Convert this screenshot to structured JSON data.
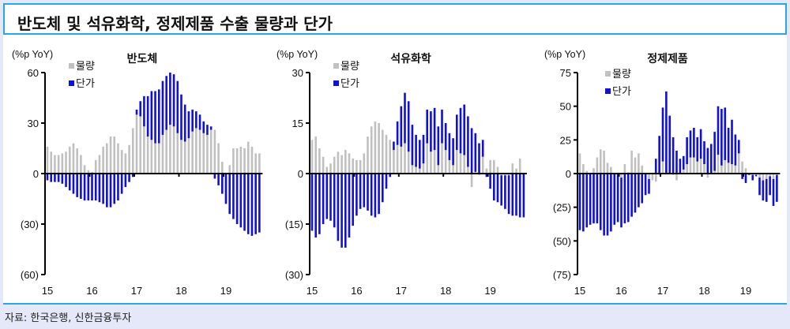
{
  "title": "반도체 및 석유화학, 정제제품 수출 물량과 단가",
  "source": "자료: 한국은행, 신한금융투자",
  "colors": {
    "volume": "#c0c0c0",
    "price": "#1010d8",
    "accent": "#29a9e0"
  },
  "chart_data": [
    {
      "type": "bar",
      "stacked": true,
      "title": "반도체",
      "unit_label": "(%p YoY)",
      "x_tick_labels": [
        "15",
        "16",
        "17",
        "18",
        "19"
      ],
      "y_ticks": [
        60,
        30,
        0,
        -30,
        -60
      ],
      "y_tick_labels": [
        "60",
        "30",
        "0",
        "(30)",
        "(60)"
      ],
      "ylim": [
        -60,
        60
      ],
      "x_start": "2015-01",
      "frequency": "monthly",
      "legend_placement": "top-left",
      "series": [
        {
          "name": "물량",
          "values": [
            16,
            13,
            11,
            11,
            12,
            13,
            16,
            18,
            15,
            11,
            5,
            2,
            1,
            8,
            11,
            16,
            18,
            22,
            22,
            18,
            14,
            12,
            17,
            27,
            35,
            34,
            28,
            22,
            20,
            18,
            18,
            23,
            26,
            29,
            28,
            24,
            20,
            19,
            21,
            25,
            27,
            26,
            24,
            23,
            26,
            26,
            18,
            7,
            0,
            5,
            15,
            15,
            16,
            15,
            19,
            16,
            12,
            12
          ]
        },
        {
          "name": "단가",
          "values": [
            -4,
            -5,
            -5,
            -5,
            -6,
            -8,
            -10,
            -12,
            -14,
            -15,
            -16,
            -16,
            -16,
            -16,
            -17,
            -18,
            -20,
            -20,
            -18,
            -16,
            -12,
            -8,
            -5,
            -2,
            3,
            9,
            18,
            24,
            29,
            31,
            32,
            32,
            32,
            31,
            31,
            31,
            27,
            22,
            16,
            13,
            10,
            9,
            7,
            6,
            2,
            -3,
            -7,
            -12,
            -18,
            -24,
            -27,
            -30,
            -32,
            -34,
            -36,
            -37,
            -36,
            -35
          ]
        }
      ]
    },
    {
      "type": "bar",
      "stacked": true,
      "title": "석유화학",
      "unit_label": "(%p YoY)",
      "x_tick_labels": [
        "15",
        "16",
        "17",
        "18",
        "19"
      ],
      "y_ticks": [
        30,
        15,
        0,
        -15,
        -30
      ],
      "y_tick_labels": [
        "30",
        "15",
        "0",
        "(15)",
        "(30)"
      ],
      "ylim": [
        -30,
        30
      ],
      "x_start": "2015-01",
      "frequency": "monthly",
      "legend_placement": "top-left",
      "series": [
        {
          "name": "물량",
          "values": [
            10,
            11,
            7.5,
            5,
            2,
            3,
            5,
            6.5,
            5.5,
            7,
            6,
            4.5,
            4,
            4,
            6,
            11,
            14,
            15.5,
            15,
            13,
            11.5,
            10,
            7,
            8.5,
            8,
            9,
            6.5,
            2.5,
            2,
            1.5,
            3,
            9,
            6.5,
            7,
            2.5,
            9,
            7,
            4,
            2.5,
            7,
            6,
            5.5,
            2,
            -4,
            0.5,
            -0.5,
            5,
            1.5,
            4,
            4,
            2,
            -0.5,
            -0.5,
            -0.5,
            3,
            1.5,
            4.5,
            0
          ]
        },
        {
          "name": "단가",
          "values": [
            -17,
            -19,
            -18,
            -15,
            -13.5,
            -14,
            -16,
            -20,
            -22,
            -22,
            -19,
            -15.5,
            -12.5,
            -10.5,
            -10,
            -11,
            -12.5,
            -13,
            -12,
            -8.5,
            -4.5,
            -1,
            2.5,
            7,
            12,
            15,
            15,
            12,
            9.5,
            8.5,
            8.5,
            10,
            12,
            12.5,
            11.5,
            10,
            8,
            8,
            8,
            10.5,
            13.5,
            15,
            15,
            13.5,
            11.5,
            9,
            5,
            -1,
            -4.5,
            -8,
            -8.5,
            -9,
            -10,
            -11.5,
            -12.5,
            -12.5,
            -13,
            -13
          ]
        }
      ]
    },
    {
      "type": "bar",
      "stacked": true,
      "title": "정제제품",
      "unit_label": "(%p YoY)",
      "x_tick_labels": [
        "15",
        "16",
        "17",
        "18",
        "19"
      ],
      "y_ticks": [
        75,
        50,
        25,
        0,
        -25,
        -50,
        -75
      ],
      "y_tick_labels": [
        "75",
        "50",
        "25",
        "0",
        "(25)",
        "(50)",
        "(75)"
      ],
      "ylim": [
        -75,
        75
      ],
      "x_start": "2015-01",
      "frequency": "monthly",
      "legend_placement": "top-left",
      "series": [
        {
          "name": "물량",
          "values": [
            15,
            7,
            2,
            0,
            4,
            12,
            18,
            17,
            8,
            5,
            0,
            0,
            -3,
            7,
            1,
            17,
            12,
            15,
            6,
            0,
            -4,
            -5,
            -6,
            -1,
            9,
            0,
            0,
            -1,
            -5,
            0,
            3,
            7,
            12,
            12,
            9,
            11,
            7,
            -3,
            0,
            2,
            14,
            6,
            10,
            8,
            7,
            6,
            15,
            9,
            4,
            0,
            -1,
            -1,
            -3,
            -5,
            -4,
            -2,
            -4,
            -1
          ]
        },
        {
          "name": "단가",
          "values": [
            -42,
            -43,
            -40,
            -38,
            -37,
            -37,
            -42,
            -46,
            -46,
            -43,
            -38,
            -36,
            -37,
            -37,
            -36,
            -32,
            -29,
            -25,
            -22,
            -16,
            -11,
            0,
            11,
            28,
            40,
            61,
            43,
            27,
            17,
            11,
            10,
            20,
            20,
            22,
            18,
            22,
            17,
            19,
            22,
            29,
            36,
            42,
            39,
            26,
            33,
            23,
            10,
            -4,
            -7,
            -1,
            -4,
            -1,
            -13,
            -15,
            -17,
            -14,
            -20,
            -20
          ]
        }
      ]
    }
  ]
}
